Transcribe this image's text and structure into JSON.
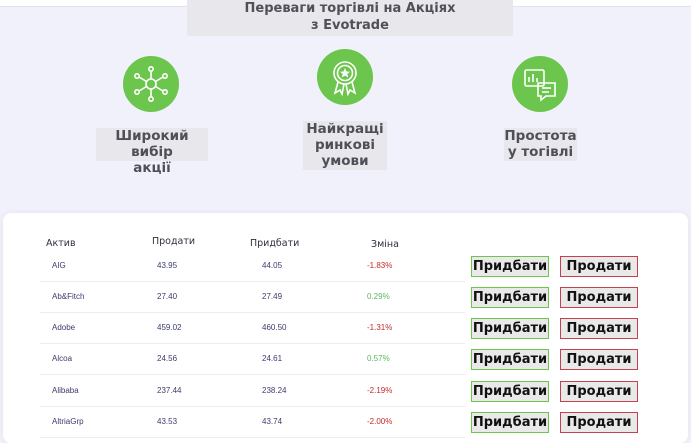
{
  "heading": {
    "line1": "Переваги торгівлі на Акціях",
    "line2": "з Evotrade"
  },
  "features": [
    {
      "icon": "network-icon",
      "line1": "Широкий вибір",
      "line2": "акції",
      "line3": ""
    },
    {
      "icon": "award-badge-icon",
      "line1": "Найкращі",
      "line2": "ринкові",
      "line3": "умови"
    },
    {
      "icon": "chart-chat-icon",
      "line1": "Простота",
      "line2": "у тогівлі",
      "line3": ""
    }
  ],
  "table": {
    "headers": {
      "asset": "Актив",
      "sell": "Продати",
      "buy": "Придбати",
      "change": "Зміна"
    },
    "buy_label": "Придбати",
    "sell_label": "Продати",
    "rows": [
      {
        "asset": "AIG",
        "sell": "43.95",
        "buy": "44.05",
        "change": "-1.83%",
        "direction": "down"
      },
      {
        "asset": "Ab&Fitch",
        "sell": "27.40",
        "buy": "27.49",
        "change": "0.29%",
        "direction": "up"
      },
      {
        "asset": "Adobe",
        "sell": "459.02",
        "buy": "460.50",
        "change": "-1.31%",
        "direction": "up"
      },
      {
        "asset": "Alcoa",
        "sell": "24.56",
        "buy": "24.61",
        "change": "0.57%",
        "direction": "down"
      },
      {
        "asset": "Alibaba",
        "sell": "237.44",
        "buy": "238.24",
        "change": "-2.19%",
        "direction": "down"
      },
      {
        "asset": "AltriaGrp",
        "sell": "43.53",
        "buy": "43.74",
        "change": "-2.00%",
        "direction": "down"
      }
    ]
  },
  "colors": {
    "accent_green": "#6cc54d",
    "sell_red": "#c4424c",
    "negative": "#c42a2a",
    "positive": "#5cb85c"
  }
}
